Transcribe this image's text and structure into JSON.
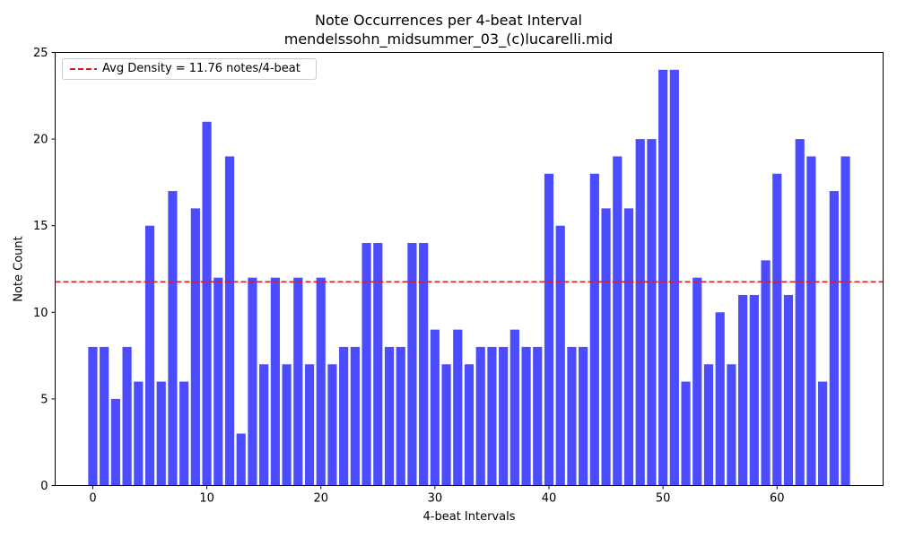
{
  "chart_data": {
    "type": "bar",
    "title": "Note Occurrences per 4-beat Interval",
    "subtitle": "mendelssohn_midsummer_03_(c)lucarelli.mid",
    "xlabel": "4-beat Intervals",
    "ylabel": "Note Count",
    "x": [
      0,
      1,
      2,
      3,
      4,
      5,
      6,
      7,
      8,
      9,
      10,
      11,
      12,
      13,
      14,
      15,
      16,
      17,
      18,
      19,
      20,
      21,
      22,
      23,
      24,
      25,
      26,
      27,
      28,
      29,
      30,
      31,
      32,
      33,
      34,
      35,
      36,
      37,
      38,
      39,
      40,
      41,
      42,
      43,
      44,
      45,
      46,
      47,
      48,
      49,
      50,
      51,
      52,
      53,
      54,
      55,
      56,
      57,
      58,
      59,
      60,
      61,
      62,
      63,
      64,
      65,
      66
    ],
    "values": [
      8,
      8,
      5,
      8,
      6,
      15,
      6,
      17,
      6,
      16,
      21,
      12,
      19,
      3,
      12,
      7,
      12,
      7,
      12,
      7,
      12,
      7,
      8,
      8,
      14,
      14,
      8,
      8,
      14,
      14,
      9,
      7,
      9,
      7,
      8,
      8,
      8,
      9,
      8,
      8,
      18,
      15,
      8,
      8,
      18,
      16,
      19,
      16,
      20,
      20,
      24,
      24,
      6,
      12,
      7,
      10,
      7,
      11,
      11,
      13,
      18,
      11,
      20,
      19,
      6,
      17,
      19
    ],
    "xlim": [
      -3.3,
      69.3
    ],
    "ylim": [
      0,
      25
    ],
    "xticks": [
      0,
      10,
      20,
      30,
      40,
      50,
      60
    ],
    "yticks": [
      0,
      5,
      10,
      15,
      20,
      25
    ],
    "bar_color": "#4b4bff",
    "reference_line": {
      "value": 11.76,
      "label": "Avg Density = 11.76 notes/4-beat",
      "color": "#e31a1c",
      "style": "dashed"
    },
    "legend_position": "upper-left",
    "grid": false
  }
}
